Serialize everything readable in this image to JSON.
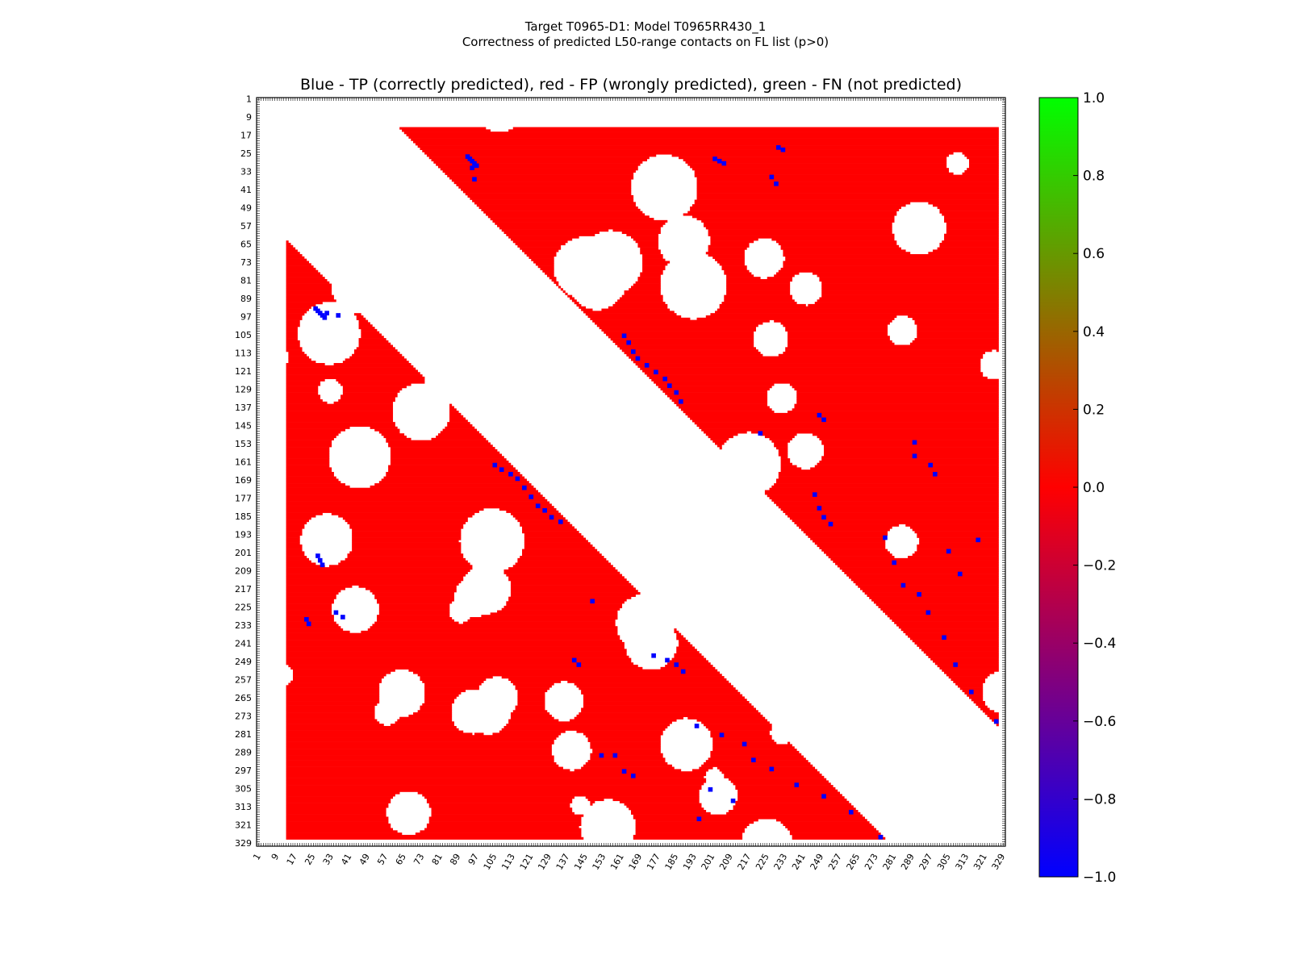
{
  "chart_data": {
    "type": "heatmap",
    "title": "Target T0965-D1: Model T0965RR430_1",
    "title_line2": "Correctness of predicted L50-range contacts on FL list (p>0)",
    "subtitle": "Blue - TP (correctly predicted), red - FP (wrongly predicted), green - FN (not predicted)",
    "residue_range": [
      1,
      330
    ],
    "tick_labels": [
      "1",
      "9",
      "17",
      "25",
      "33",
      "41",
      "49",
      "57",
      "65",
      "73",
      "81",
      "89",
      "97",
      "105",
      "113",
      "121",
      "129",
      "137",
      "145",
      "153",
      "161",
      "169",
      "177",
      "185",
      "193",
      "201",
      "209",
      "217",
      "225",
      "233",
      "241",
      "249",
      "257",
      "265",
      "273",
      "281",
      "289",
      "297",
      "305",
      "313",
      "321",
      "329"
    ],
    "colorbar": {
      "range": [
        -1.0,
        1.0
      ],
      "ticks": [
        "1.0",
        "0.8",
        "0.6",
        "0.4",
        "0.2",
        "0.0",
        "−0.2",
        "−0.4",
        "−0.6",
        "−0.8",
        "−1.0"
      ],
      "colors": [
        "#0000ff",
        "#ff0000",
        "#00ff00"
      ]
    },
    "legend": {
      "tp": "Blue",
      "fp": "red",
      "fn": "green"
    },
    "colors": {
      "tp": "#0000ff",
      "fp": "#ff0000",
      "fn": "#00ff00",
      "background": "#ffffff"
    },
    "regions": {
      "upper_triangle": {
        "rows": [
          14,
          327
        ],
        "cols": [
          64,
          327
        ],
        "status": "fp"
      },
      "lower_triangle": {
        "rows": [
          64,
          327
        ],
        "cols": [
          14,
          277
        ],
        "status": "fp"
      },
      "inner_triangle": {
        "rows": [
          150,
          327
        ],
        "cols": [
          93,
          278
        ],
        "status": "fp"
      }
    },
    "tp_contacts": [
      [
        26,
        93
      ],
      [
        27,
        94
      ],
      [
        28,
        95
      ],
      [
        29,
        96
      ],
      [
        30,
        97
      ],
      [
        31,
        95
      ],
      [
        36,
        96
      ],
      [
        27,
        202
      ],
      [
        28,
        204
      ],
      [
        29,
        206
      ],
      [
        22,
        230
      ],
      [
        23,
        232
      ],
      [
        35,
        227
      ],
      [
        38,
        229
      ],
      [
        105,
        162
      ],
      [
        108,
        164
      ],
      [
        112,
        166
      ],
      [
        115,
        168
      ],
      [
        118,
        172
      ],
      [
        121,
        176
      ],
      [
        124,
        180
      ],
      [
        127,
        182
      ],
      [
        130,
        185
      ],
      [
        134,
        187
      ],
      [
        140,
        248
      ],
      [
        142,
        250
      ],
      [
        148,
        222
      ],
      [
        152,
        290
      ],
      [
        158,
        290
      ],
      [
        162,
        297
      ],
      [
        166,
        299
      ],
      [
        175,
        246
      ],
      [
        181,
        248
      ],
      [
        185,
        250
      ],
      [
        188,
        253
      ],
      [
        194,
        277
      ],
      [
        205,
        281
      ],
      [
        215,
        285
      ],
      [
        219,
        292
      ],
      [
        227,
        296
      ],
      [
        238,
        303
      ],
      [
        250,
        308
      ],
      [
        262,
        315
      ],
      [
        275,
        326
      ],
      [
        200,
        305
      ],
      [
        210,
        310
      ],
      [
        195,
        318
      ]
    ]
  }
}
